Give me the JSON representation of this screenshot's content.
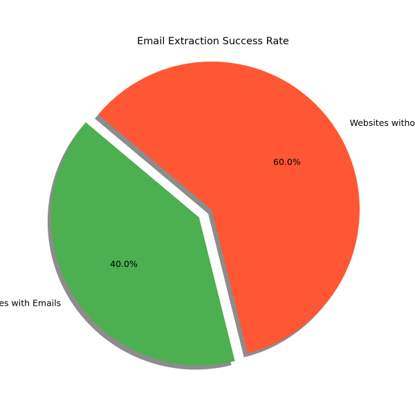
{
  "chart_data": {
    "type": "pie",
    "title": "Email Extraction Success Rate",
    "slices": [
      {
        "label": "Websites with Emails",
        "value": 40.0,
        "pct_label": "40.0%",
        "color": "#4CAF50",
        "exploded": true
      },
      {
        "label": "Websites without Emails",
        "value": 60.0,
        "pct_label": "60.0%",
        "color": "#FF5733",
        "exploded": false
      }
    ],
    "shadow": true,
    "legend": "none"
  }
}
